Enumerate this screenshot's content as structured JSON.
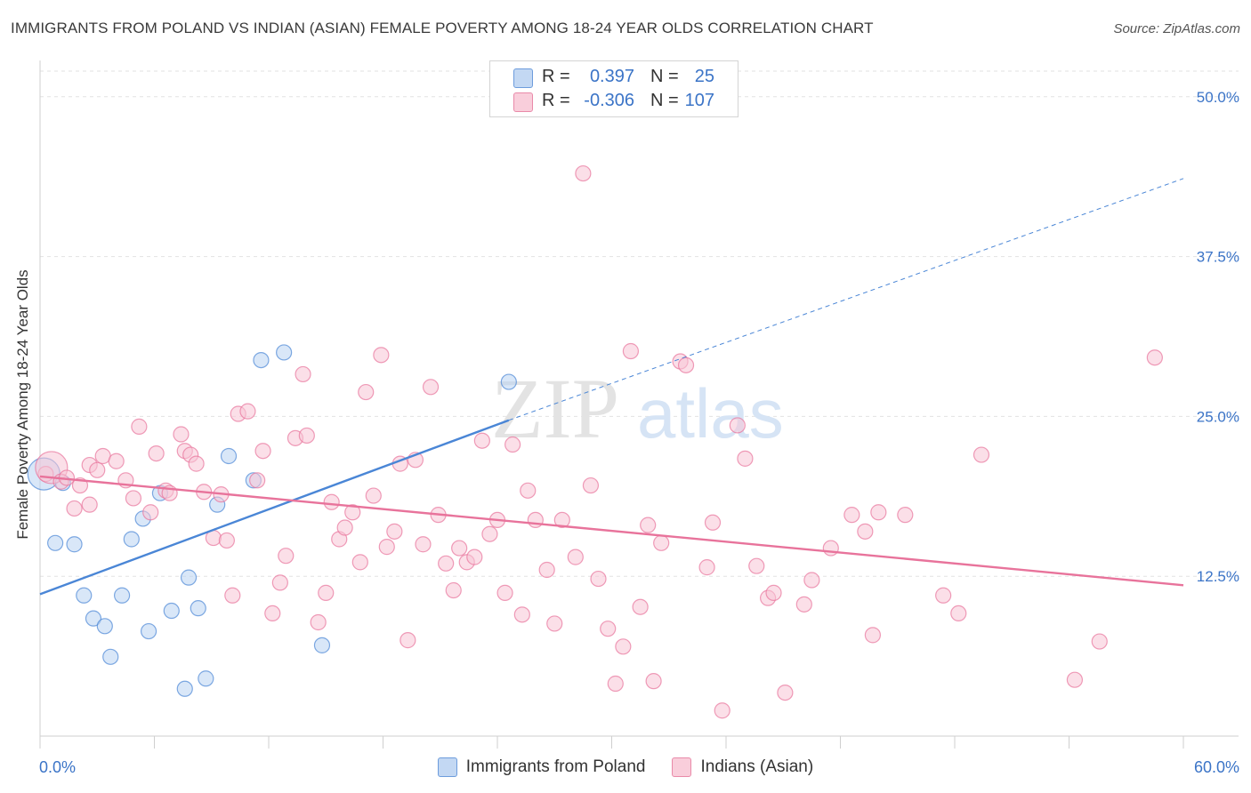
{
  "title": "IMMIGRANTS FROM POLAND VS INDIAN (ASIAN) FEMALE POVERTY AMONG 18-24 YEAR OLDS CORRELATION CHART",
  "source": "Source: ZipAtlas.com",
  "watermark": {
    "zip": "ZIP",
    "atlas": "atlas"
  },
  "legend_top": {
    "rows": [
      {
        "r_label": "R =",
        "r_value": "0.397",
        "n_label": "N =",
        "n_value": "25",
        "color": "#9ec2ee"
      },
      {
        "r_label": "R =",
        "r_value": "-0.306",
        "n_label": "N =",
        "n_value": "107",
        "color": "#f5b3c8"
      }
    ]
  },
  "legend_bottom": [
    {
      "label": "Immigrants from Poland",
      "color": "#9ec2ee"
    },
    {
      "label": "Indians (Asian)",
      "color": "#f5b3c8"
    }
  ],
  "chart_data": {
    "type": "scatter",
    "title": "IMMIGRANTS FROM POLAND VS INDIAN (ASIAN) FEMALE POVERTY AMONG 18-24 YEAR OLDS CORRELATION CHART",
    "xlabel": "",
    "ylabel": "Female Poverty Among 18-24 Year Olds",
    "xlim": [
      0,
      60
    ],
    "ylim": [
      0,
      52
    ],
    "x_tick_labels": [
      {
        "value": 0,
        "label": "0.0%"
      },
      {
        "value": 60,
        "label": "60.0%"
      }
    ],
    "y_tick_labels": [
      {
        "value": 12.5,
        "label": "12.5%"
      },
      {
        "value": 25,
        "label": "25.0%"
      },
      {
        "value": 37.5,
        "label": "37.5%"
      },
      {
        "value": 50,
        "label": "50.0%"
      }
    ],
    "grid": true,
    "series": [
      {
        "name": "Immigrants from Poland",
        "color": "#4a86d6",
        "fill": "#b9d3f3",
        "points": [
          [
            0.2,
            20.5
          ],
          [
            1.2,
            19.8
          ],
          [
            0.8,
            15.1
          ],
          [
            1.8,
            15.0
          ],
          [
            2.3,
            11.0
          ],
          [
            2.8,
            9.2
          ],
          [
            3.4,
            8.6
          ],
          [
            3.7,
            6.2
          ],
          [
            4.3,
            11.0
          ],
          [
            4.8,
            15.4
          ],
          [
            5.4,
            17.0
          ],
          [
            5.7,
            8.2
          ],
          [
            6.3,
            19.0
          ],
          [
            6.9,
            9.8
          ],
          [
            7.6,
            3.7
          ],
          [
            7.8,
            12.4
          ],
          [
            8.3,
            10.0
          ],
          [
            8.7,
            4.5
          ],
          [
            9.3,
            18.1
          ],
          [
            9.9,
            21.9
          ],
          [
            11.2,
            20.0
          ],
          [
            11.6,
            29.4
          ],
          [
            12.8,
            30.0
          ],
          [
            14.8,
            7.1
          ],
          [
            24.6,
            27.7
          ]
        ],
        "trend": {
          "from": [
            0,
            11.1
          ],
          "to": [
            24.6,
            24.7
          ],
          "dash_to": [
            60,
            43.6
          ]
        }
      },
      {
        "name": "Indians (Asian)",
        "color": "#e8739b",
        "fill": "#f8c5d5",
        "points": [
          [
            0.3,
            20.5
          ],
          [
            0.6,
            21.0
          ],
          [
            1.1,
            19.9
          ],
          [
            1.4,
            20.2
          ],
          [
            1.8,
            17.8
          ],
          [
            2.1,
            19.6
          ],
          [
            2.6,
            18.1
          ],
          [
            2.6,
            21.2
          ],
          [
            3.0,
            20.8
          ],
          [
            3.3,
            21.9
          ],
          [
            4.0,
            21.5
          ],
          [
            4.5,
            20.0
          ],
          [
            4.9,
            18.6
          ],
          [
            5.2,
            24.2
          ],
          [
            5.8,
            17.5
          ],
          [
            6.1,
            22.1
          ],
          [
            6.6,
            19.2
          ],
          [
            6.8,
            19.0
          ],
          [
            7.4,
            23.6
          ],
          [
            7.6,
            22.3
          ],
          [
            7.9,
            22.0
          ],
          [
            8.2,
            21.3
          ],
          [
            8.6,
            19.1
          ],
          [
            9.1,
            15.5
          ],
          [
            9.5,
            18.9
          ],
          [
            9.8,
            15.3
          ],
          [
            10.1,
            11.0
          ],
          [
            10.4,
            25.2
          ],
          [
            10.9,
            25.4
          ],
          [
            11.4,
            20.0
          ],
          [
            11.7,
            22.3
          ],
          [
            12.2,
            9.6
          ],
          [
            12.6,
            12.0
          ],
          [
            12.9,
            14.1
          ],
          [
            13.4,
            23.3
          ],
          [
            13.8,
            28.3
          ],
          [
            14.0,
            23.5
          ],
          [
            14.6,
            8.9
          ],
          [
            15.0,
            11.2
          ],
          [
            15.3,
            18.3
          ],
          [
            15.7,
            15.4
          ],
          [
            16.0,
            16.3
          ],
          [
            16.4,
            17.5
          ],
          [
            16.8,
            13.6
          ],
          [
            17.1,
            26.9
          ],
          [
            17.5,
            18.8
          ],
          [
            17.9,
            29.8
          ],
          [
            18.2,
            14.8
          ],
          [
            18.6,
            16.0
          ],
          [
            18.9,
            21.3
          ],
          [
            19.3,
            7.5
          ],
          [
            19.7,
            21.6
          ],
          [
            20.1,
            15.0
          ],
          [
            20.5,
            27.3
          ],
          [
            20.9,
            17.3
          ],
          [
            21.3,
            13.5
          ],
          [
            21.7,
            11.4
          ],
          [
            22.0,
            14.7
          ],
          [
            22.4,
            13.6
          ],
          [
            22.8,
            14.0
          ],
          [
            23.2,
            23.1
          ],
          [
            23.6,
            15.8
          ],
          [
            24.0,
            16.9
          ],
          [
            24.4,
            11.2
          ],
          [
            24.8,
            22.8
          ],
          [
            25.3,
            9.5
          ],
          [
            25.6,
            19.2
          ],
          [
            26.0,
            16.9
          ],
          [
            26.6,
            13.0
          ],
          [
            27.0,
            8.8
          ],
          [
            27.4,
            16.9
          ],
          [
            28.1,
            14.0
          ],
          [
            28.5,
            44.0
          ],
          [
            28.9,
            19.6
          ],
          [
            29.3,
            12.3
          ],
          [
            29.8,
            8.4
          ],
          [
            30.2,
            4.1
          ],
          [
            30.6,
            7.0
          ],
          [
            31.0,
            30.1
          ],
          [
            31.5,
            10.1
          ],
          [
            31.9,
            16.5
          ],
          [
            32.2,
            4.3
          ],
          [
            32.6,
            15.1
          ],
          [
            33.6,
            29.3
          ],
          [
            33.9,
            29.0
          ],
          [
            35.0,
            13.2
          ],
          [
            35.3,
            16.7
          ],
          [
            35.8,
            2.0
          ],
          [
            36.6,
            24.3
          ],
          [
            37.0,
            21.7
          ],
          [
            37.6,
            13.3
          ],
          [
            38.2,
            10.8
          ],
          [
            38.5,
            11.2
          ],
          [
            39.1,
            3.4
          ],
          [
            40.1,
            10.3
          ],
          [
            40.5,
            12.2
          ],
          [
            41.5,
            14.7
          ],
          [
            42.6,
            17.3
          ],
          [
            43.3,
            16.0
          ],
          [
            43.7,
            7.9
          ],
          [
            44.0,
            17.5
          ],
          [
            45.4,
            17.3
          ],
          [
            47.4,
            11.0
          ],
          [
            48.2,
            9.6
          ],
          [
            49.4,
            22.0
          ],
          [
            54.3,
            4.4
          ],
          [
            55.6,
            7.4
          ],
          [
            58.5,
            29.6
          ]
        ],
        "trend": {
          "from": [
            0,
            20.3
          ],
          "to": [
            60,
            11.8
          ]
        }
      }
    ]
  }
}
